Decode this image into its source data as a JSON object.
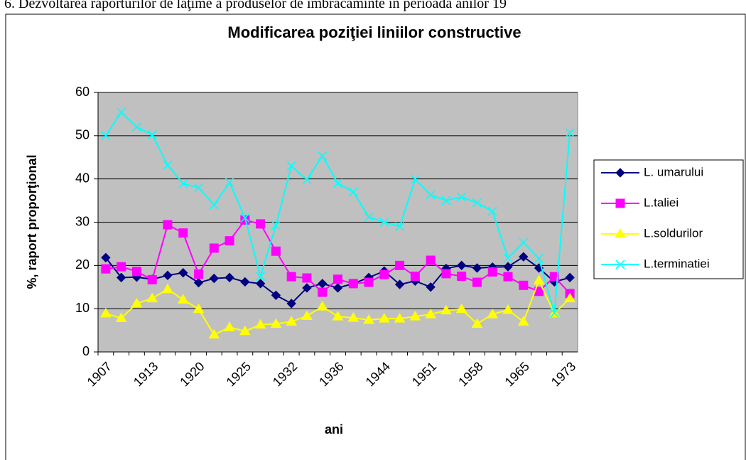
{
  "caption": "6. Dezvoltarea raporturilor de laţime  a produselor de îmbrăcăminte în perioada anilor 19",
  "chart_data": {
    "type": "line",
    "title": "Modificarea poziţiei liniilor constructive",
    "x_label": "ani",
    "y_label": "%, raport proporţional",
    "categories": [
      "1907",
      null,
      null,
      "1913",
      null,
      null,
      "1920",
      null,
      null,
      "1925",
      null,
      null,
      "1932",
      null,
      null,
      "1936",
      null,
      null,
      "1944",
      null,
      null,
      "1951",
      null,
      null,
      "1958",
      null,
      null,
      "1965",
      null,
      null,
      "1973"
    ],
    "ylim": [
      0,
      60
    ],
    "yticks": [
      0,
      10,
      20,
      30,
      40,
      50,
      60
    ],
    "grid": true,
    "legend": "right",
    "series": [
      {
        "name": "L. umarului",
        "color": "#000080",
        "marker": "diamond",
        "values": [
          21.8,
          17.2,
          17.3,
          16.8,
          17.7,
          18.3,
          16,
          17,
          17.2,
          16.2,
          15.8,
          13.1,
          11.2,
          14.8,
          15.8,
          14.8,
          15.8,
          17.2,
          18.7,
          15.6,
          16.4,
          15,
          19.3,
          20,
          19.4,
          19.6,
          19.7,
          22,
          19.4,
          16.2,
          17.2
        ]
      },
      {
        "name": "L.taliei",
        "color": "#ff00ff",
        "marker": "square",
        "values": [
          19.2,
          19.7,
          18.6,
          16.7,
          29.4,
          27.5,
          18,
          24,
          25.7,
          30.5,
          29.6,
          23.3,
          17.4,
          17.1,
          13.8,
          16.8,
          15.8,
          16.1,
          17.9,
          20,
          17.5,
          21.2,
          18.1,
          17.5,
          16.1,
          18.5,
          17.4,
          15.4,
          14,
          17.4,
          13.5
        ]
      },
      {
        "name": "L.soldurilor",
        "color": "#ffff00",
        "marker": "triangle",
        "values": [
          8.9,
          7.8,
          11.2,
          12.4,
          14.5,
          12.1,
          9.9,
          4,
          5.7,
          4.8,
          6.3,
          6.5,
          7,
          8.3,
          10.5,
          8.2,
          7.9,
          7.4,
          7.7,
          7.7,
          8.2,
          8.7,
          9.6,
          9.9,
          6.5,
          8.7,
          9.7,
          7,
          16.5,
          8.9,
          12.4
        ]
      },
      {
        "name": "L.terminatiei",
        "color": "#00ffff",
        "marker": "x",
        "values": [
          50,
          55.4,
          52,
          50.2,
          43.2,
          38.9,
          38,
          34,
          39.2,
          31,
          17.5,
          29.3,
          43,
          39.8,
          45.3,
          39,
          37,
          31.2,
          30,
          29,
          39.9,
          36.3,
          35,
          35.8,
          34.5,
          32.5,
          21.7,
          25.3,
          21.6,
          9,
          50.7
        ]
      }
    ]
  }
}
